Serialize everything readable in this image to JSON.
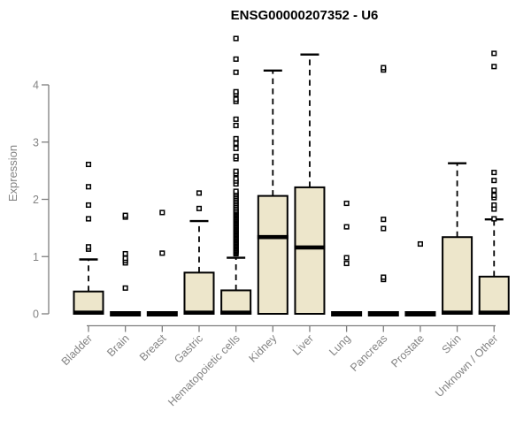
{
  "window": {
    "background": "#ffffff"
  },
  "chart_data": {
    "type": "boxplot",
    "title": "ENSG00000207352 - U6",
    "ylabel": "Expression",
    "xlabel": "",
    "yticks": [
      0,
      1,
      2,
      3,
      4
    ],
    "ylim": [
      0,
      4.9
    ],
    "grid": false,
    "legend": "none",
    "colors": {
      "box_fill": "#EDE6CB",
      "box_stroke": "#000000",
      "median": "#000000",
      "axis": "#7e7e7e",
      "axis_text": "#838383",
      "title": "#000000",
      "outlier_fill": "#ffffff"
    },
    "categories": [
      "Bladder",
      "Brain",
      "Breast",
      "Gastric",
      "Hematopoietic cells",
      "Kidney",
      "Liver",
      "Lung",
      "Pancreas",
      "Prostate",
      "Skin",
      "Unknown / Other"
    ],
    "boxes": [
      {
        "label": "Bladder",
        "q1": 0,
        "median": 0.02,
        "q3": 0.39,
        "whisker_low": 0,
        "whisker_high": 0.95,
        "outliers": [
          1.13,
          1.17,
          1.66,
          1.9,
          2.22,
          2.61
        ]
      },
      {
        "label": "Brain",
        "q1": 0,
        "median": 0,
        "q3": 0,
        "whisker_low": 0,
        "whisker_high": 0,
        "outliers": [
          0.45,
          0.89,
          0.93,
          0.97,
          1.05,
          1.69,
          1.72
        ]
      },
      {
        "label": "Breast",
        "q1": 0,
        "median": 0,
        "q3": 0,
        "whisker_low": 0,
        "whisker_high": 0,
        "outliers": [
          1.06,
          1.77
        ]
      },
      {
        "label": "Gastric",
        "q1": 0,
        "median": 0.02,
        "q3": 0.72,
        "whisker_low": 0,
        "whisker_high": 1.62,
        "outliers": [
          1.84,
          2.11
        ]
      },
      {
        "label": "Hematopoietic cells",
        "q1": 0,
        "median": 0.02,
        "q3": 0.41,
        "whisker_low": 0,
        "whisker_high": 0.98,
        "outliers": [
          1.05,
          1.07,
          1.09,
          1.11,
          1.13,
          1.15,
          1.17,
          1.19,
          1.21,
          1.23,
          1.25,
          1.27,
          1.29,
          1.31,
          1.33,
          1.35,
          1.37,
          1.39,
          1.41,
          1.43,
          1.45,
          1.47,
          1.49,
          1.51,
          1.53,
          1.55,
          1.57,
          1.59,
          1.61,
          1.63,
          1.65,
          1.67,
          1.69,
          1.71,
          1.73,
          1.75,
          1.77,
          1.79,
          1.81,
          1.84,
          1.87,
          1.9,
          1.93,
          1.96,
          1.99,
          2.02,
          2.05,
          2.08,
          2.11,
          2.14,
          2.27,
          2.32,
          2.36,
          2.45,
          2.49,
          2.71,
          2.75,
          2.89,
          2.98,
          3.06,
          3.29,
          3.4,
          3.71,
          3.75,
          3.84,
          3.88,
          4.22,
          4.45,
          4.81
        ]
      },
      {
        "label": "Kidney",
        "q1": 0,
        "median": 1.34,
        "q3": 2.06,
        "whisker_low": 0,
        "whisker_high": 4.25,
        "outliers": []
      },
      {
        "label": "Liver",
        "q1": 0,
        "median": 1.16,
        "q3": 2.21,
        "whisker_low": 0,
        "whisker_high": 4.53,
        "outliers": []
      },
      {
        "label": "Lung",
        "q1": 0,
        "median": 0,
        "q3": 0,
        "whisker_low": 0,
        "whisker_high": 0,
        "outliers": [
          0.88,
          0.98,
          1.52,
          1.93
        ]
      },
      {
        "label": "Pancreas",
        "q1": 0,
        "median": 0,
        "q3": 0,
        "whisker_low": 0,
        "whisker_high": 0,
        "outliers": [
          0.6,
          0.64,
          1.49,
          1.65,
          4.26,
          4.3
        ]
      },
      {
        "label": "Prostate",
        "q1": 0,
        "median": 0,
        "q3": 0,
        "whisker_low": 0,
        "whisker_high": 0,
        "outliers": [
          1.22
        ]
      },
      {
        "label": "Skin",
        "q1": 0,
        "median": 0.02,
        "q3": 1.34,
        "whisker_low": 0,
        "whisker_high": 2.63,
        "outliers": []
      },
      {
        "label": "Unknown / Other",
        "q1": 0,
        "median": 0.02,
        "q3": 0.65,
        "whisker_low": 0,
        "whisker_high": 1.65,
        "outliers": [
          1.66,
          1.83,
          1.9,
          2.03,
          2.07,
          2.16,
          2.33,
          2.47,
          4.32,
          4.55
        ]
      }
    ]
  }
}
